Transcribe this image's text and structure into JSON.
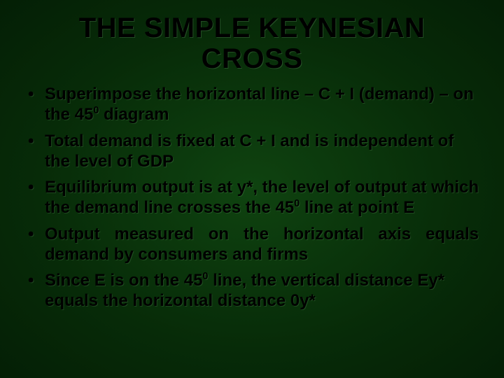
{
  "background": {
    "center_color": "#0f4310",
    "mid_color": "#072b08",
    "edge_color": "#041f05"
  },
  "text_color": "#000000",
  "title": {
    "text": "THE SIMPLE KEYNESIAN CROSS",
    "fontsize": 40,
    "weight": 900,
    "align": "center"
  },
  "bullets": {
    "fontsize": 24,
    "weight": 700,
    "items": [
      {
        "html": "Superimpose the horizontal line – C + I (demand) – on the 45<sup>0</sup> diagram",
        "justify": false
      },
      {
        "html": "Total demand is fixed at C + I and is independent of the level of GDP",
        "justify": false
      },
      {
        "html": "Equilibrium output is at y*, the level of output at which the demand line crosses the 45<sup>0</sup> line at point E",
        "justify": true
      },
      {
        "html": "Output measured on the horizontal axis equals demand by consumers and firms",
        "justify": true
      },
      {
        "html": "Since E is on the 45<sup>0</sup> line, the vertical distance Ey* equals the horizontal distance 0y*",
        "justify": false
      }
    ]
  }
}
